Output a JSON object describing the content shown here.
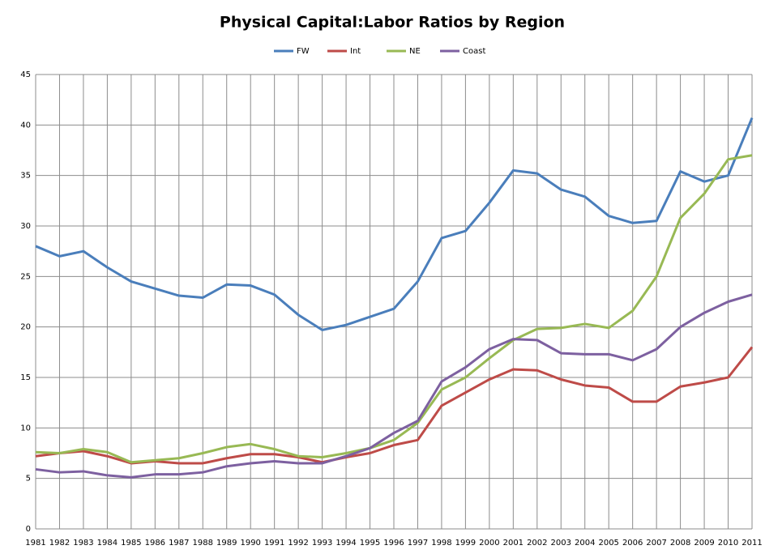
{
  "chart_data": {
    "type": "line",
    "title": "Physical Capital:Labor Ratios by Region",
    "categories": [
      "1981",
      "1982",
      "1983",
      "1984",
      "1985",
      "1986",
      "1987",
      "1988",
      "1989",
      "1990",
      "1991",
      "1992",
      "1993",
      "1994",
      "1995",
      "1996",
      "1997",
      "1998",
      "1999",
      "2000",
      "2001",
      "2002",
      "2003",
      "2004",
      "2005",
      "2006",
      "2007",
      "2008",
      "2009",
      "2010",
      "2011"
    ],
    "series": [
      {
        "name": "FW",
        "color": "#4a7ebb",
        "values": [
          28.0,
          27.0,
          27.5,
          25.9,
          24.5,
          23.8,
          23.1,
          22.9,
          24.2,
          24.1,
          23.2,
          21.2,
          19.7,
          20.2,
          21.0,
          21.8,
          24.5,
          28.8,
          29.5,
          32.3,
          35.5,
          35.2,
          33.6,
          32.9,
          31.0,
          30.3,
          30.5,
          35.4,
          34.4,
          35.0,
          40.7
        ]
      },
      {
        "name": "Int",
        "color": "#be4b48",
        "values": [
          7.2,
          7.5,
          7.7,
          7.2,
          6.5,
          6.7,
          6.5,
          6.5,
          7.0,
          7.4,
          7.4,
          7.1,
          6.6,
          7.1,
          7.5,
          8.3,
          8.8,
          12.2,
          13.5,
          14.8,
          15.8,
          15.7,
          14.8,
          14.2,
          14.0,
          12.6,
          12.6,
          14.1,
          14.5,
          15.0,
          18.0
        ]
      },
      {
        "name": "NE",
        "color": "#98b954",
        "values": [
          7.6,
          7.5,
          7.9,
          7.6,
          6.6,
          6.8,
          7.0,
          7.5,
          8.1,
          8.4,
          7.9,
          7.2,
          7.1,
          7.5,
          8.0,
          8.8,
          10.5,
          13.8,
          15.0,
          16.9,
          18.7,
          19.8,
          19.9,
          20.3,
          19.9,
          21.6,
          25.0,
          30.8,
          33.2,
          36.6,
          37.0
        ]
      },
      {
        "name": "Coast",
        "color": "#7d60a0",
        "values": [
          5.9,
          5.6,
          5.7,
          5.3,
          5.1,
          5.4,
          5.4,
          5.6,
          6.2,
          6.5,
          6.7,
          6.5,
          6.5,
          7.2,
          8.0,
          9.5,
          10.7,
          14.6,
          16.0,
          17.8,
          18.8,
          18.7,
          17.4,
          17.3,
          17.3,
          16.7,
          17.8,
          20.0,
          21.4,
          22.5,
          23.2
        ]
      }
    ],
    "ylim": [
      0,
      45
    ],
    "yticks": [
      0,
      5,
      10,
      15,
      20,
      25,
      30,
      35,
      40,
      45
    ],
    "grid": true,
    "legend": "top"
  }
}
